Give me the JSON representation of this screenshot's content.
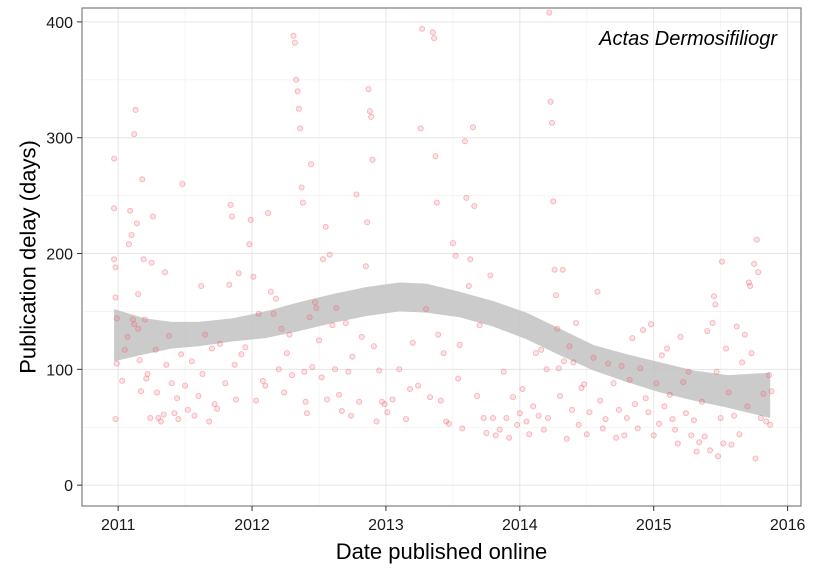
{
  "chart_data": {
    "type": "scatter",
    "annotation": "Actas Dermosifiliogr",
    "xlabel": "Date published online",
    "ylabel": "Publication delay (days)",
    "x_ticks": [
      "2011",
      "2012",
      "2013",
      "2014",
      "2015",
      "2016"
    ],
    "y_ticks": [
      "0",
      "100",
      "200",
      "300",
      "400"
    ],
    "xlim": [
      2010.73,
      2016.1
    ],
    "ylim": [
      -18,
      412
    ],
    "grid": true,
    "point_color": "#f0606a",
    "band_color": "#c2c2c2",
    "smooth_band": {
      "x": [
        2010.97,
        2011.2,
        2011.4,
        2011.6,
        2011.85,
        2012.1,
        2012.35,
        2012.6,
        2012.85,
        2013.1,
        2013.3,
        2013.55,
        2013.8,
        2014.05,
        2014.3,
        2014.55,
        2014.8,
        2015.05,
        2015.3,
        2015.55,
        2015.87
      ],
      "lower": [
        107,
        113,
        118,
        120,
        124,
        127,
        133,
        140,
        146,
        150,
        149,
        145,
        137,
        126,
        112,
        99,
        89,
        80,
        73,
        67,
        58
      ],
      "upper": [
        152,
        144,
        141,
        141,
        144,
        150,
        158,
        165,
        171,
        175,
        174,
        167,
        159,
        149,
        135,
        121,
        113,
        106,
        99,
        95,
        97
      ]
    },
    "points": [
      [
        2010.97,
        282
      ],
      [
        2010.97,
        239
      ],
      [
        2010.97,
        195
      ],
      [
        2010.98,
        188
      ],
      [
        2010.98,
        162
      ],
      [
        2010.99,
        144
      ],
      [
        2010.99,
        105
      ],
      [
        2010.98,
        57
      ],
      [
        2011.03,
        90
      ],
      [
        2011.05,
        117
      ],
      [
        2011.07,
        128
      ],
      [
        2011.08,
        208
      ],
      [
        2011.09,
        237
      ],
      [
        2011.1,
        216
      ],
      [
        2011.11,
        143
      ],
      [
        2011.12,
        139
      ],
      [
        2011.12,
        303
      ],
      [
        2011.13,
        324
      ],
      [
        2011.14,
        226
      ],
      [
        2011.15,
        165
      ],
      [
        2011.15,
        135
      ],
      [
        2011.16,
        108
      ],
      [
        2011.17,
        81
      ],
      [
        2011.18,
        264
      ],
      [
        2011.19,
        195
      ],
      [
        2011.2,
        143
      ],
      [
        2011.21,
        92
      ],
      [
        2011.22,
        96
      ],
      [
        2011.24,
        58
      ],
      [
        2011.25,
        192
      ],
      [
        2011.26,
        232
      ],
      [
        2011.28,
        117
      ],
      [
        2011.29,
        80
      ],
      [
        2011.3,
        58
      ],
      [
        2011.32,
        55
      ],
      [
        2011.34,
        61
      ],
      [
        2011.35,
        184
      ],
      [
        2011.36,
        104
      ],
      [
        2011.38,
        129
      ],
      [
        2011.4,
        88
      ],
      [
        2011.42,
        62
      ],
      [
        2011.44,
        75
      ],
      [
        2011.45,
        57
      ],
      [
        2011.47,
        113
      ],
      [
        2011.48,
        260
      ],
      [
        2011.5,
        86
      ],
      [
        2011.52,
        65
      ],
      [
        2011.55,
        107
      ],
      [
        2011.57,
        60
      ],
      [
        2011.6,
        77
      ],
      [
        2011.62,
        172
      ],
      [
        2011.63,
        96
      ],
      [
        2011.65,
        130
      ],
      [
        2011.68,
        55
      ],
      [
        2011.7,
        118
      ],
      [
        2011.72,
        70
      ],
      [
        2011.74,
        66
      ],
      [
        2011.76,
        122
      ],
      [
        2011.8,
        88
      ],
      [
        2011.83,
        173
      ],
      [
        2011.84,
        242
      ],
      [
        2011.85,
        232
      ],
      [
        2011.87,
        104
      ],
      [
        2011.88,
        74
      ],
      [
        2011.9,
        183
      ],
      [
        2011.92,
        113
      ],
      [
        2011.95,
        119
      ],
      [
        2011.98,
        208
      ],
      [
        2011.99,
        229
      ],
      [
        2012.01,
        180
      ],
      [
        2012.03,
        73
      ],
      [
        2012.05,
        148
      ],
      [
        2012.08,
        90
      ],
      [
        2012.1,
        86
      ],
      [
        2012.12,
        235
      ],
      [
        2012.14,
        167
      ],
      [
        2012.16,
        148
      ],
      [
        2012.18,
        161
      ],
      [
        2012.2,
        100
      ],
      [
        2012.22,
        135
      ],
      [
        2012.24,
        80
      ],
      [
        2012.26,
        114
      ],
      [
        2012.28,
        130
      ],
      [
        2012.3,
        95
      ],
      [
        2012.31,
        388
      ],
      [
        2012.32,
        382
      ],
      [
        2012.33,
        350
      ],
      [
        2012.34,
        340
      ],
      [
        2012.35,
        325
      ],
      [
        2012.36,
        308
      ],
      [
        2012.37,
        257
      ],
      [
        2012.38,
        244
      ],
      [
        2012.39,
        98
      ],
      [
        2012.4,
        72
      ],
      [
        2012.41,
        62
      ],
      [
        2012.43,
        145
      ],
      [
        2012.44,
        277
      ],
      [
        2012.45,
        102
      ],
      [
        2012.47,
        158
      ],
      [
        2012.48,
        153
      ],
      [
        2012.5,
        125
      ],
      [
        2012.52,
        93
      ],
      [
        2012.53,
        195
      ],
      [
        2012.55,
        223
      ],
      [
        2012.56,
        74
      ],
      [
        2012.58,
        199
      ],
      [
        2012.6,
        138
      ],
      [
        2012.62,
        100
      ],
      [
        2012.63,
        153
      ],
      [
        2012.65,
        78
      ],
      [
        2012.67,
        64
      ],
      [
        2012.7,
        140
      ],
      [
        2012.72,
        98
      ],
      [
        2012.74,
        60
      ],
      [
        2012.75,
        111
      ],
      [
        2012.78,
        251
      ],
      [
        2012.8,
        72
      ],
      [
        2012.82,
        128
      ],
      [
        2012.85,
        189
      ],
      [
        2012.86,
        227
      ],
      [
        2012.87,
        342
      ],
      [
        2012.88,
        323
      ],
      [
        2012.89,
        318
      ],
      [
        2012.9,
        281
      ],
      [
        2012.91,
        120
      ],
      [
        2012.93,
        55
      ],
      [
        2012.95,
        99
      ],
      [
        2012.97,
        72
      ],
      [
        2012.99,
        70
      ],
      [
        2013.01,
        63
      ],
      [
        2013.05,
        74
      ],
      [
        2013.1,
        100
      ],
      [
        2013.15,
        57
      ],
      [
        2013.18,
        83
      ],
      [
        2013.2,
        123
      ],
      [
        2013.24,
        86
      ],
      [
        2013.26,
        308
      ],
      [
        2013.27,
        394
      ],
      [
        2013.3,
        152
      ],
      [
        2013.33,
        76
      ],
      [
        2013.35,
        391
      ],
      [
        2013.36,
        386
      ],
      [
        2013.37,
        284
      ],
      [
        2013.38,
        244
      ],
      [
        2013.39,
        130
      ],
      [
        2013.41,
        73
      ],
      [
        2013.43,
        114
      ],
      [
        2013.45,
        55
      ],
      [
        2013.47,
        53
      ],
      [
        2013.5,
        209
      ],
      [
        2013.52,
        198
      ],
      [
        2013.54,
        92
      ],
      [
        2013.55,
        121
      ],
      [
        2013.57,
        49
      ],
      [
        2013.59,
        297
      ],
      [
        2013.6,
        248
      ],
      [
        2013.62,
        172
      ],
      [
        2013.63,
        195
      ],
      [
        2013.65,
        309
      ],
      [
        2013.66,
        241
      ],
      [
        2013.68,
        77
      ],
      [
        2013.7,
        138
      ],
      [
        2013.73,
        58
      ],
      [
        2013.75,
        45
      ],
      [
        2013.78,
        181
      ],
      [
        2013.8,
        58
      ],
      [
        2013.82,
        43
      ],
      [
        2013.85,
        48
      ],
      [
        2013.88,
        98
      ],
      [
        2013.9,
        58
      ],
      [
        2013.92,
        41
      ],
      [
        2013.95,
        76
      ],
      [
        2013.98,
        52
      ],
      [
        2014.0,
        62
      ],
      [
        2014.02,
        83
      ],
      [
        2014.05,
        55
      ],
      [
        2014.07,
        44
      ],
      [
        2014.1,
        68
      ],
      [
        2014.12,
        114
      ],
      [
        2014.14,
        60
      ],
      [
        2014.16,
        117
      ],
      [
        2014.18,
        48
      ],
      [
        2014.2,
        100
      ],
      [
        2014.21,
        58
      ],
      [
        2014.22,
        408
      ],
      [
        2014.23,
        331
      ],
      [
        2014.24,
        313
      ],
      [
        2014.25,
        245
      ],
      [
        2014.26,
        186
      ],
      [
        2014.27,
        164
      ],
      [
        2014.28,
        135
      ],
      [
        2014.29,
        101
      ],
      [
        2014.3,
        77
      ],
      [
        2014.32,
        186
      ],
      [
        2014.33,
        107
      ],
      [
        2014.35,
        40
      ],
      [
        2014.37,
        120
      ],
      [
        2014.39,
        65
      ],
      [
        2014.4,
        106
      ],
      [
        2014.42,
        140
      ],
      [
        2014.44,
        52
      ],
      [
        2014.46,
        84
      ],
      [
        2014.48,
        87
      ],
      [
        2014.5,
        44
      ],
      [
        2014.52,
        63
      ],
      [
        2014.55,
        110
      ],
      [
        2014.58,
        167
      ],
      [
        2014.6,
        73
      ],
      [
        2014.62,
        49
      ],
      [
        2014.64,
        57
      ],
      [
        2014.66,
        105
      ],
      [
        2014.7,
        88
      ],
      [
        2014.72,
        41
      ],
      [
        2014.74,
        65
      ],
      [
        2014.76,
        103
      ],
      [
        2014.78,
        43
      ],
      [
        2014.8,
        58
      ],
      [
        2014.82,
        91
      ],
      [
        2014.84,
        127
      ],
      [
        2014.86,
        70
      ],
      [
        2014.88,
        49
      ],
      [
        2014.9,
        101
      ],
      [
        2014.92,
        134
      ],
      [
        2014.94,
        75
      ],
      [
        2014.96,
        63
      ],
      [
        2014.98,
        139
      ],
      [
        2015.0,
        43
      ],
      [
        2015.02,
        88
      ],
      [
        2015.04,
        53
      ],
      [
        2015.06,
        112
      ],
      [
        2015.08,
        68
      ],
      [
        2015.1,
        118
      ],
      [
        2015.12,
        78
      ],
      [
        2015.14,
        57
      ],
      [
        2015.16,
        48
      ],
      [
        2015.18,
        36
      ],
      [
        2015.2,
        128
      ],
      [
        2015.22,
        89
      ],
      [
        2015.24,
        62
      ],
      [
        2015.26,
        98
      ],
      [
        2015.28,
        43
      ],
      [
        2015.3,
        56
      ],
      [
        2015.32,
        29
      ],
      [
        2015.34,
        37
      ],
      [
        2015.36,
        72
      ],
      [
        2015.38,
        42
      ],
      [
        2015.4,
        133
      ],
      [
        2015.42,
        30
      ],
      [
        2015.44,
        140
      ],
      [
        2015.45,
        163
      ],
      [
        2015.46,
        156
      ],
      [
        2015.47,
        98
      ],
      [
        2015.48,
        25
      ],
      [
        2015.5,
        58
      ],
      [
        2015.51,
        193
      ],
      [
        2015.52,
        36
      ],
      [
        2015.54,
        118
      ],
      [
        2015.56,
        80
      ],
      [
        2015.58,
        35
      ],
      [
        2015.6,
        60
      ],
      [
        2015.62,
        137
      ],
      [
        2015.64,
        44
      ],
      [
        2015.66,
        106
      ],
      [
        2015.68,
        130
      ],
      [
        2015.7,
        68
      ],
      [
        2015.71,
        175
      ],
      [
        2015.72,
        172
      ],
      [
        2015.73,
        114
      ],
      [
        2015.75,
        191
      ],
      [
        2015.76,
        23
      ],
      [
        2015.77,
        212
      ],
      [
        2015.78,
        184
      ],
      [
        2015.8,
        58
      ],
      [
        2015.82,
        79
      ],
      [
        2015.84,
        55
      ],
      [
        2015.86,
        95
      ],
      [
        2015.87,
        52
      ],
      [
        2015.88,
        81
      ]
    ]
  }
}
